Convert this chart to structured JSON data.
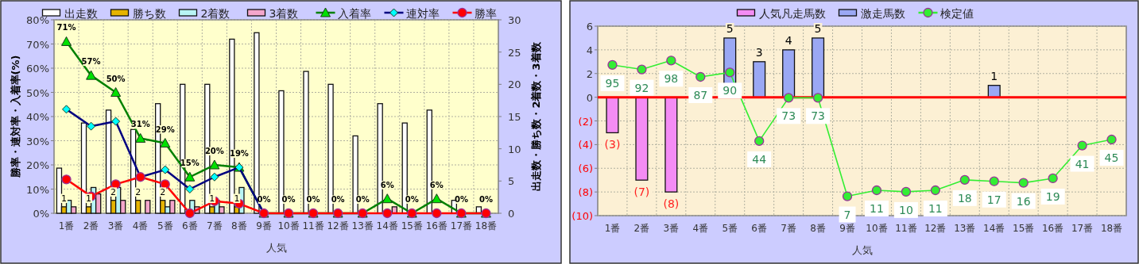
{
  "chart_data": [
    {
      "type": "bar",
      "categories": [
        "1番",
        "2番",
        "3番",
        "4番",
        "5番",
        "6番",
        "7番",
        "8番",
        "9番",
        "10番",
        "11番",
        "12番",
        "13番",
        "14番",
        "15番",
        "16番",
        "17番",
        "18番"
      ],
      "xlabel": "人気",
      "ylabel": "勝率・連対率・入着率(%)",
      "y2label": "出走数・勝ち数・2着数・3着数",
      "ylim": [
        0,
        80
      ],
      "yticks": [
        {
          "value": 0,
          "label": "0%"
        },
        {
          "value": 10,
          "label": "10%"
        },
        {
          "value": 20,
          "label": "20%"
        },
        {
          "value": 30,
          "label": "30%"
        },
        {
          "value": 40,
          "label": "40%"
        },
        {
          "value": 50,
          "label": "50%"
        },
        {
          "value": 60,
          "label": "60%"
        },
        {
          "value": 70,
          "label": "70%"
        },
        {
          "value": 80,
          "label": "80%"
        }
      ],
      "y2lim": [
        0,
        30
      ],
      "y2ticks": [
        0,
        5,
        10,
        15,
        20,
        25,
        30
      ],
      "grid": true,
      "legend": "top",
      "series": [
        {
          "name": "出走数",
          "axis": "y2",
          "color": "#ffffff",
          "values": [
            7,
            14,
            16,
            13,
            17,
            20,
            20,
            27,
            28,
            19,
            22,
            20,
            12,
            17,
            14,
            16,
            2,
            1
          ]
        },
        {
          "name": "勝ち数",
          "axis": "y2",
          "color": "#e6b400",
          "values": [
            1,
            1,
            2,
            2,
            2,
            0,
            1,
            1,
            0,
            0,
            0,
            0,
            0,
            0,
            0,
            0,
            0,
            0
          ],
          "value_labels": [
            "1",
            "1",
            "2",
            "2",
            "2",
            null,
            "1",
            "1",
            null,
            null,
            null,
            null,
            null,
            null,
            null,
            null,
            null,
            null
          ]
        },
        {
          "name": "2着数",
          "axis": "y2",
          "color": "#b8f4f4",
          "values": [
            2,
            4,
            4,
            0,
            1,
            2,
            2,
            4,
            0,
            0,
            0,
            0,
            0,
            0,
            0,
            0,
            0,
            0
          ]
        },
        {
          "name": "3着数",
          "axis": "y2",
          "color": "#f4a6cc",
          "values": [
            1,
            3,
            2,
            2,
            2,
            1,
            1,
            0,
            0,
            0,
            0,
            0,
            0,
            1,
            0,
            0,
            0,
            0
          ]
        },
        {
          "name": "入着率",
          "type": "line",
          "color": "#008000",
          "marker": "triangle",
          "values": [
            71,
            57,
            50,
            31,
            29,
            15,
            20,
            19,
            0,
            0,
            0,
            0,
            0,
            6,
            0,
            6,
            0,
            0
          ],
          "value_labels": [
            "71%",
            "57%",
            "50%",
            "31%",
            "29%",
            "15%",
            "20%",
            "19%",
            "0%",
            "0%",
            "0%",
            "0%",
            "0%",
            "6%",
            "0%",
            "6%",
            "0%",
            "0%"
          ]
        },
        {
          "name": "連対率",
          "type": "line",
          "color": "#000080",
          "marker": "diamond",
          "values": [
            43,
            36,
            38,
            15,
            18,
            10,
            15,
            19,
            0,
            null,
            null,
            null,
            null,
            null,
            null,
            null,
            null,
            null
          ]
        },
        {
          "name": "勝率",
          "type": "line",
          "color": "#ff0000",
          "marker": "circle",
          "values": [
            14,
            7,
            12,
            15,
            12,
            0,
            5,
            4,
            0,
            0,
            0,
            0,
            0,
            0,
            0,
            0,
            0,
            0
          ]
        }
      ]
    },
    {
      "type": "bar",
      "stacked": true,
      "categories": [
        "1番",
        "2番",
        "3番",
        "4番",
        "5番",
        "6番",
        "7番",
        "8番",
        "9番",
        "10番",
        "11番",
        "12番",
        "13番",
        "14番",
        "15番",
        "16番",
        "17番",
        "18番"
      ],
      "xlabel": "人気",
      "ylim": [
        -10,
        6
      ],
      "yticks": [
        {
          "value": -10,
          "label": "(10)"
        },
        {
          "value": -8,
          "label": "(8)"
        },
        {
          "value": -6,
          "label": "(6)"
        },
        {
          "value": -4,
          "label": "(4)"
        },
        {
          "value": -2,
          "label": "(2)"
        },
        0,
        2,
        4,
        6
      ],
      "y2lim": [
        -6,
        121
      ],
      "grid": true,
      "legend": "top",
      "ref_lines": [
        {
          "axis": "y",
          "value": 0,
          "color": "#ff0000"
        }
      ],
      "series": [
        {
          "name": "人気凡走馬数",
          "color": "#f48cf4",
          "values": [
            -3,
            -7,
            -8,
            null,
            null,
            null,
            null,
            null,
            null,
            null,
            null,
            null,
            null,
            null,
            null,
            null,
            null,
            null
          ],
          "value_labels": [
            "(3)",
            "(7)",
            "(8)",
            null,
            null,
            null,
            null,
            null,
            null,
            null,
            null,
            null,
            null,
            null,
            null,
            null,
            null,
            null
          ]
        },
        {
          "name": "激走馬数",
          "color": "#9aa8f4",
          "values": [
            null,
            null,
            null,
            null,
            5,
            3,
            4,
            5,
            null,
            null,
            null,
            null,
            null,
            1,
            null,
            null,
            null,
            null
          ],
          "value_labels": [
            null,
            null,
            null,
            null,
            "5",
            "3",
            "4",
            "5",
            null,
            null,
            null,
            null,
            null,
            "1",
            null,
            null,
            null,
            null
          ]
        },
        {
          "name": "検定値",
          "type": "line",
          "axis": "y2",
          "color": "#33ee33",
          "marker": "circle",
          "values": [
            95,
            92,
            98,
            87,
            90,
            44,
            73,
            73,
            7,
            11,
            10,
            11,
            18,
            17,
            16,
            19,
            41,
            45
          ],
          "value_labels": [
            "95",
            "92",
            "98",
            "87",
            "90",
            "44",
            "73",
            "73",
            "7",
            "11",
            "10",
            "11",
            "18",
            "17",
            "16",
            "19",
            "41",
            "45"
          ]
        }
      ]
    }
  ]
}
